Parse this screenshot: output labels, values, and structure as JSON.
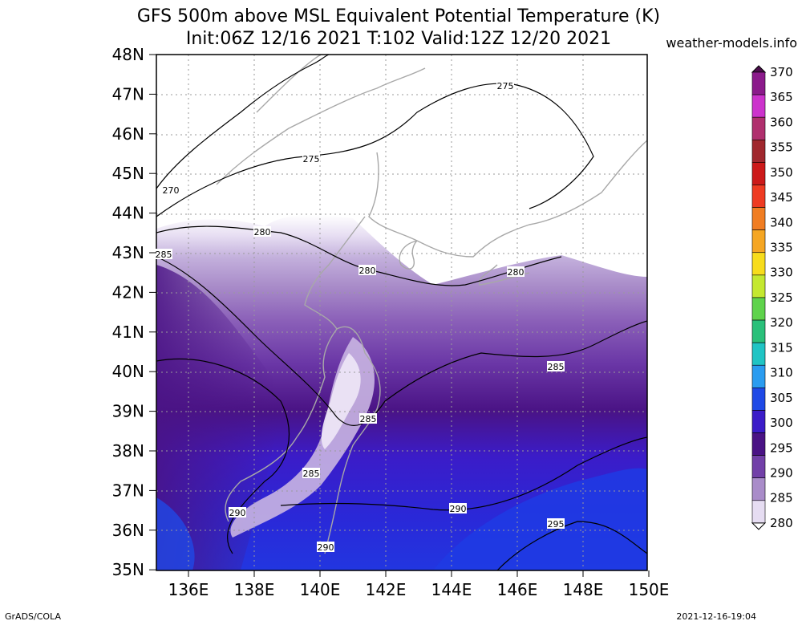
{
  "header": {
    "title_line1": "GFS 500m above MSL Equivalent Potential Temperature (K)",
    "title_line2": "Init:06Z 12/16 2021 T:102 Valid:12Z 12/20 2021",
    "brand": "weather-models.info"
  },
  "footer": {
    "software": "GrADS/COLA",
    "generated": "2021-12-16-19:04"
  },
  "map": {
    "lat_range": [
      35,
      48
    ],
    "lon_range": [
      135,
      150
    ],
    "lat_labels": [
      "48N",
      "47N",
      "46N",
      "45N",
      "44N",
      "43N",
      "42N",
      "41N",
      "40N",
      "39N",
      "38N",
      "37N",
      "36N",
      "35N"
    ],
    "lon_labels": [
      "136E",
      "138E",
      "140E",
      "142E",
      "144E",
      "146E",
      "148E",
      "150E"
    ],
    "contour_labels": [
      "275",
      "275",
      "270",
      "280",
      "285",
      "280",
      "280",
      "285",
      "285",
      "285",
      "290",
      "290",
      "295",
      "290"
    ],
    "grid": true
  },
  "colorbar": {
    "labels": [
      "370",
      "365",
      "360",
      "355",
      "350",
      "345",
      "340",
      "335",
      "330",
      "325",
      "320",
      "315",
      "310",
      "305",
      "300",
      "295",
      "290",
      "285",
      "280"
    ],
    "colors": [
      "#4b0e4b",
      "#8b1a8b",
      "#cc33cc",
      "#b0306e",
      "#a0282e",
      "#cc1a1a",
      "#ee3b22",
      "#f07d22",
      "#f5a623",
      "#f7dc1c",
      "#c4e830",
      "#5fd34c",
      "#2ac07a",
      "#20c4c4",
      "#2a9cf0",
      "#1f49e6",
      "#3b1cc8",
      "#4a1385",
      "#7240a8",
      "#a98cc9",
      "#e6ddf2",
      "#ffffff"
    ]
  }
}
